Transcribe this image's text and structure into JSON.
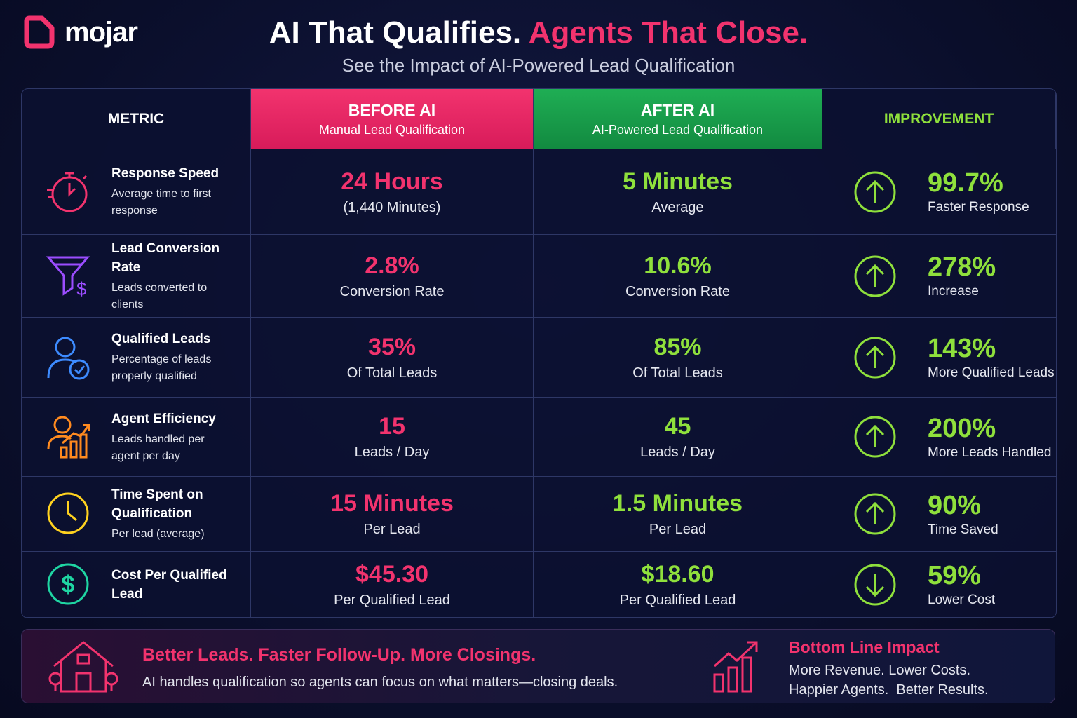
{
  "logo": "mojar",
  "header": {
    "title_white": "AI That Qualifies.",
    "title_pink": "Agents That Close.",
    "subtitle": "See the Impact of AI-Powered Lead Qualification"
  },
  "table": {
    "columns": [
      {
        "title": "METRIC"
      },
      {
        "title": "BEFORE AI",
        "subtitle": "Manual Lead Qualification"
      },
      {
        "title": "AFTER AI",
        "subtitle": "AI-Powered Lead Qualification"
      },
      {
        "title": "IMPROVEMENT"
      }
    ],
    "rows": [
      {
        "metric": {
          "title": "Response Speed",
          "description": "Average time to first response"
        },
        "before": {
          "value": "24 Hours",
          "unit": "(1,440 Minutes)"
        },
        "after": {
          "value": "5 Minutes",
          "unit": "Average"
        },
        "improvement": {
          "value": "99.7%",
          "label": "Faster Response",
          "arrow": "up"
        }
      },
      {
        "metric": {
          "title": "Lead Conversion Rate",
          "description": "Leads converted to clients"
        },
        "before": {
          "value": "2.8%",
          "unit": "Conversion Rate"
        },
        "after": {
          "value": "10.6%",
          "unit": "Conversion Rate"
        },
        "improvement": {
          "value": "278%",
          "label": "Increase",
          "arrow": "up"
        }
      },
      {
        "metric": {
          "title": "Qualified Leads",
          "description": "Percentage of leads properly qualified"
        },
        "before": {
          "value": "35%",
          "unit": "Of Total Leads"
        },
        "after": {
          "value": "85%",
          "unit": "Of Total Leads"
        },
        "improvement": {
          "value": "143%",
          "label": "More Qualified Leads",
          "arrow": "up"
        }
      },
      {
        "metric": {
          "title": "Agent Efficiency",
          "description": "Leads handled per agent per day"
        },
        "before": {
          "value": "15",
          "unit": "Leads / Day"
        },
        "after": {
          "value": "45",
          "unit": "Leads / Day"
        },
        "improvement": {
          "value": "200%",
          "label": "More Leads Handled",
          "arrow": "up"
        }
      },
      {
        "metric": {
          "title": "Time Spent on Qualification",
          "description": "Per lead (average)"
        },
        "before": {
          "value": "15 Minutes",
          "unit": "Per Lead"
        },
        "after": {
          "value": "1.5 Minutes",
          "unit": "Per Lead"
        },
        "improvement": {
          "value": "90%",
          "label": "Time Saved",
          "arrow": "up"
        }
      },
      {
        "metric": {
          "title": "Cost Per Qualified Lead"
        },
        "before": {
          "value": "$45.30",
          "unit": "Per Qualified Lead"
        },
        "after": {
          "value": "$18.60",
          "unit": "Per Qualified Lead"
        },
        "improvement": {
          "value": "59%",
          "label": "Lower Cost",
          "arrow": "down"
        }
      }
    ]
  },
  "footer": {
    "left": {
      "title": "Better Leads. Faster Follow-Up. More Closings.",
      "text": "AI handles qualification so agents can focus on what matters—closing deals."
    },
    "right": {
      "title": "Bottom Line Impact",
      "text": "More Revenue. Lower Costs. Happier Agents.  Better Results."
    }
  }
}
